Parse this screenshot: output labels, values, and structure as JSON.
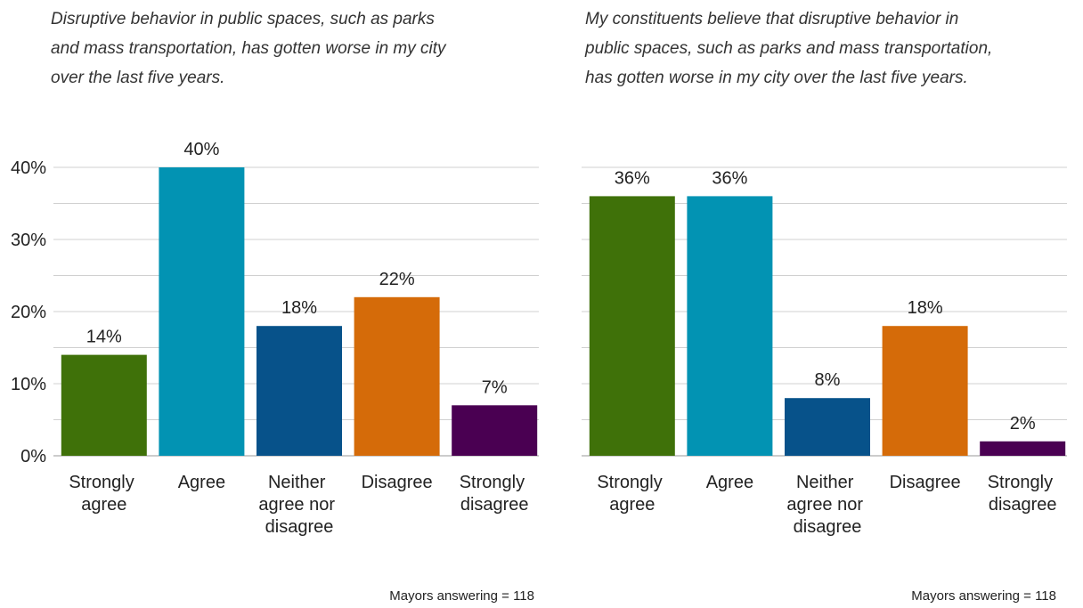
{
  "chart_data": [
    {
      "type": "bar",
      "title": "Disruptive behavior in public spaces, such as parks and mass transportation, has gotten worse in my city over the last five years.",
      "categories": [
        "Strongly agree",
        "Agree",
        "Neither agree nor disagree",
        "Disagree",
        "Strongly disagree"
      ],
      "values": [
        14,
        40,
        18,
        22,
        7
      ],
      "value_labels": [
        "14%",
        "40%",
        "18%",
        "22%",
        "7%"
      ],
      "colors": [
        "#3f7109",
        "#0293b3",
        "#07528a",
        "#d56b09",
        "#4a0052"
      ],
      "ylim": [
        0,
        40
      ],
      "yticks": [
        {
          "value": 0,
          "label": "0%"
        },
        {
          "value": 10,
          "label": "10%"
        },
        {
          "value": 20,
          "label": "20%"
        },
        {
          "value": 30,
          "label": "30%"
        },
        {
          "value": 40,
          "label": "40%"
        }
      ],
      "yminor": [
        5,
        15,
        25,
        35
      ],
      "show_ytick_labels": true,
      "grid": true,
      "note": "Mayors answering = 118"
    },
    {
      "type": "bar",
      "title": "My constituents believe that disruptive behavior in public spaces, such as parks and mass transportation, has gotten worse in my city over the last five years.",
      "categories": [
        "Strongly agree",
        "Agree",
        "Neither agree nor disagree",
        "Disagree",
        "Strongly disagree"
      ],
      "values": [
        36,
        36,
        8,
        18,
        2
      ],
      "value_labels": [
        "36%",
        "36%",
        "8%",
        "18%",
        "2%"
      ],
      "colors": [
        "#3f7109",
        "#0293b3",
        "#07528a",
        "#d56b09",
        "#4a0052"
      ],
      "ylim": [
        0,
        40
      ],
      "yticks": [
        0,
        10,
        20,
        30,
        40
      ],
      "yminor": [
        5,
        15,
        25,
        35
      ],
      "show_ytick_labels": false,
      "grid": true,
      "note": "Mayors answering = 118"
    }
  ]
}
